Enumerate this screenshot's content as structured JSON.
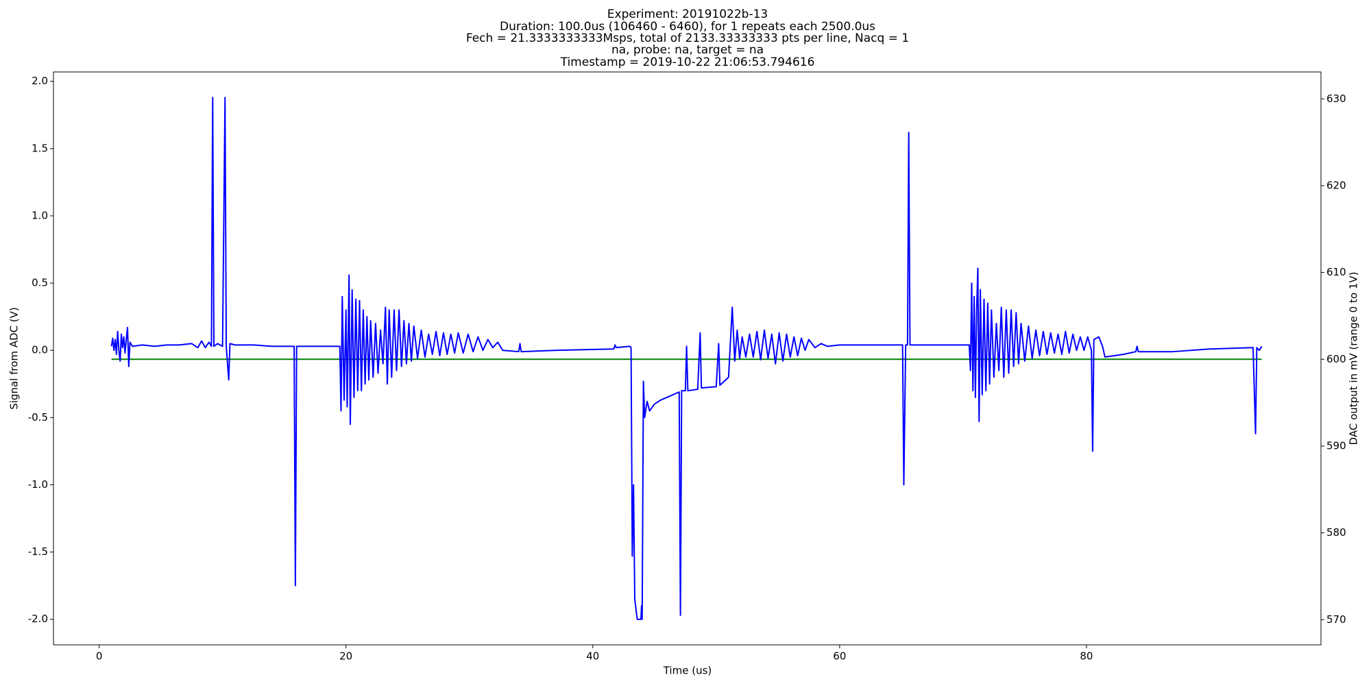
{
  "chart_data": {
    "type": "line",
    "title": [
      "Experiment: 20191022b-13",
      "Duration: 100.0us (106460 - 6460), for 1 repeats each 2500.0us",
      "Fech = 21.3333333333Msps, total of 2133.33333333 pts per line, Nacq = 1",
      "na, probe: na, target = na",
      "Timestamp = 2019-10-22 21:06:53.794616"
    ],
    "xlabel": "Time (us)",
    "ylabel": "Signal from ADC (V)",
    "y2label": "DAC output in mV (range 0 to 1V)",
    "ylabel_color": "#0000cc",
    "y2label_color": "#008000",
    "xlim": [
      -3.7,
      99.0
    ],
    "ylim": [
      -2.19,
      2.07
    ],
    "y2lim": [
      567.1,
      633.1
    ],
    "xticks": [
      0,
      20,
      40,
      60,
      80
    ],
    "yticks": [
      {
        "value": -2.0,
        "label": "-2.0"
      },
      -1.5,
      {
        "value": -1.0,
        "label": "-1.0"
      },
      -0.5,
      {
        "value": 0.0,
        "label": "0.0"
      },
      0.5,
      {
        "value": 1.0,
        "label": "1.0"
      },
      1.5,
      {
        "value": 2.0,
        "label": "2.0"
      }
    ],
    "y2ticks": [
      570,
      580,
      590,
      600,
      610,
      620,
      630
    ],
    "grid": false,
    "series": [
      {
        "color": "#0000ff",
        "axis": "y",
        "x": [
          1.0,
          1.1,
          1.2,
          1.3,
          1.4,
          1.5,
          1.6,
          1.7,
          1.8,
          1.9,
          2.0,
          2.1,
          2.2,
          2.3,
          2.4,
          2.5,
          2.7,
          3.5,
          4.5,
          5.5,
          6.5,
          7.5,
          8.0,
          8.3,
          8.6,
          8.9,
          9.1,
          9.2,
          9.3,
          9.6,
          10.0,
          10.2,
          10.3,
          10.5,
          10.6,
          11.0,
          12.5,
          14.0,
          15.5,
          15.8,
          15.9,
          16.0,
          17.5,
          19.5,
          19.6,
          19.7,
          19.85,
          20.0,
          20.1,
          20.25,
          20.35,
          20.5,
          20.65,
          20.8,
          20.95,
          21.1,
          21.25,
          21.4,
          21.55,
          21.7,
          21.85,
          22.0,
          22.2,
          22.4,
          22.6,
          22.8,
          23.0,
          23.2,
          23.35,
          23.5,
          23.7,
          23.9,
          24.1,
          24.3,
          24.5,
          24.7,
          24.9,
          25.1,
          25.3,
          25.5,
          25.8,
          26.1,
          26.4,
          26.7,
          27.0,
          27.3,
          27.6,
          27.9,
          28.2,
          28.5,
          28.8,
          29.1,
          29.5,
          29.9,
          30.3,
          30.7,
          31.1,
          31.5,
          31.9,
          32.3,
          32.7,
          34.0,
          34.1,
          34.2,
          37.0,
          41.7,
          41.8,
          41.9,
          43.0,
          43.1,
          43.2,
          43.3,
          43.4,
          43.6,
          43.9,
          43.95,
          44.0,
          44.1,
          44.2,
          44.4,
          44.6,
          45.0,
          45.5,
          46.0,
          46.5,
          47.0,
          47.1,
          47.2,
          47.5,
          47.6,
          47.7,
          48.5,
          48.7,
          48.8,
          50.0,
          50.2,
          50.3,
          51.0,
          51.3,
          51.5,
          51.7,
          51.9,
          52.1,
          52.4,
          52.7,
          53.0,
          53.3,
          53.6,
          53.9,
          54.2,
          54.5,
          54.8,
          55.1,
          55.4,
          55.7,
          56.0,
          56.3,
          56.6,
          56.9,
          57.2,
          57.5,
          58.0,
          58.5,
          59.0,
          60.0,
          62.0,
          64.0,
          65.1,
          65.2,
          65.35,
          65.5,
          65.6,
          65.7,
          68.0,
          70.5,
          70.6,
          70.7,
          70.8,
          70.9,
          71.0,
          71.1,
          71.2,
          71.3,
          71.4,
          71.55,
          71.7,
          71.85,
          72.0,
          72.15,
          72.3,
          72.5,
          72.7,
          72.9,
          73.1,
          73.3,
          73.5,
          73.7,
          73.9,
          74.1,
          74.3,
          74.5,
          74.7,
          75.0,
          75.3,
          75.6,
          75.9,
          76.2,
          76.5,
          76.8,
          77.1,
          77.4,
          77.7,
          78.0,
          78.3,
          78.6,
          78.9,
          79.2,
          79.5,
          79.8,
          80.1,
          80.4,
          80.5,
          80.6,
          81.0,
          81.3,
          81.5,
          83.0,
          84.0,
          84.1,
          84.2,
          87.0,
          90.0,
          93.5,
          93.7,
          93.8,
          94.0,
          94.2
        ],
        "values": [
          0.03,
          0.09,
          0.0,
          0.08,
          -0.03,
          0.14,
          0.0,
          -0.08,
          0.12,
          0.02,
          0.1,
          -0.02,
          0.08,
          0.17,
          -0.12,
          0.06,
          0.03,
          0.04,
          0.03,
          0.04,
          0.04,
          0.05,
          0.02,
          0.07,
          0.02,
          0.06,
          0.03,
          1.88,
          0.03,
          0.05,
          0.03,
          1.88,
          0.03,
          -0.22,
          0.05,
          0.04,
          0.04,
          0.03,
          0.03,
          0.03,
          -1.75,
          0.03,
          0.03,
          0.03,
          -0.45,
          0.4,
          -0.37,
          0.3,
          -0.42,
          0.56,
          -0.55,
          0.45,
          -0.35,
          0.38,
          -0.3,
          0.37,
          -0.3,
          0.3,
          -0.25,
          0.25,
          -0.22,
          0.22,
          -0.2,
          0.2,
          -0.17,
          0.15,
          -0.1,
          0.32,
          -0.25,
          0.3,
          -0.2,
          0.3,
          -0.15,
          0.3,
          -0.12,
          0.22,
          -0.1,
          0.2,
          -0.08,
          0.18,
          -0.06,
          0.15,
          -0.05,
          0.12,
          -0.03,
          0.14,
          -0.04,
          0.13,
          -0.03,
          0.12,
          -0.02,
          0.13,
          -0.02,
          0.12,
          -0.01,
          0.1,
          0.0,
          0.08,
          0.02,
          0.06,
          0.0,
          -0.01,
          0.05,
          -0.01,
          0.0,
          0.01,
          0.04,
          0.02,
          0.03,
          0.02,
          -1.53,
          -1.0,
          -1.85,
          -2.0,
          -2.0,
          -1.9,
          -2.0,
          -0.23,
          -0.5,
          -0.38,
          -0.45,
          -0.4,
          -0.37,
          -0.35,
          -0.33,
          -0.31,
          -1.97,
          -0.3,
          -0.3,
          0.03,
          -0.3,
          -0.29,
          0.13,
          -0.28,
          -0.27,
          0.05,
          -0.26,
          -0.2,
          0.32,
          -0.08,
          0.15,
          -0.06,
          0.1,
          -0.05,
          0.12,
          -0.05,
          0.14,
          -0.07,
          0.15,
          -0.06,
          0.12,
          -0.1,
          0.13,
          -0.08,
          0.12,
          -0.05,
          0.1,
          -0.04,
          0.09,
          0.0,
          0.08,
          0.02,
          0.05,
          0.03,
          0.04,
          0.04,
          0.04,
          0.04,
          -1.0,
          0.04,
          0.04,
          1.62,
          0.04,
          0.04,
          0.04,
          -0.15,
          0.5,
          -0.3,
          0.4,
          -0.35,
          0.3,
          0.61,
          -0.53,
          0.45,
          -0.33,
          0.38,
          -0.3,
          0.35,
          -0.25,
          0.3,
          -0.2,
          0.2,
          -0.15,
          0.32,
          -0.2,
          0.3,
          -0.17,
          0.3,
          -0.12,
          0.28,
          -0.1,
          0.2,
          -0.08,
          0.18,
          -0.06,
          0.15,
          -0.04,
          0.14,
          -0.03,
          0.13,
          -0.02,
          0.12,
          -0.03,
          0.14,
          -0.02,
          0.12,
          0.0,
          0.1,
          0.0,
          0.1,
          0.0,
          -0.75,
          0.08,
          0.1,
          0.03,
          -0.05,
          -0.03,
          -0.01,
          0.03,
          -0.01,
          -0.01,
          0.01,
          0.02,
          -0.62,
          0.02,
          0.0,
          0.03
        ]
      },
      {
        "color": "#008000",
        "axis": "y2",
        "x": [
          1.0,
          94.2
        ],
        "values": [
          600,
          600
        ]
      }
    ]
  }
}
